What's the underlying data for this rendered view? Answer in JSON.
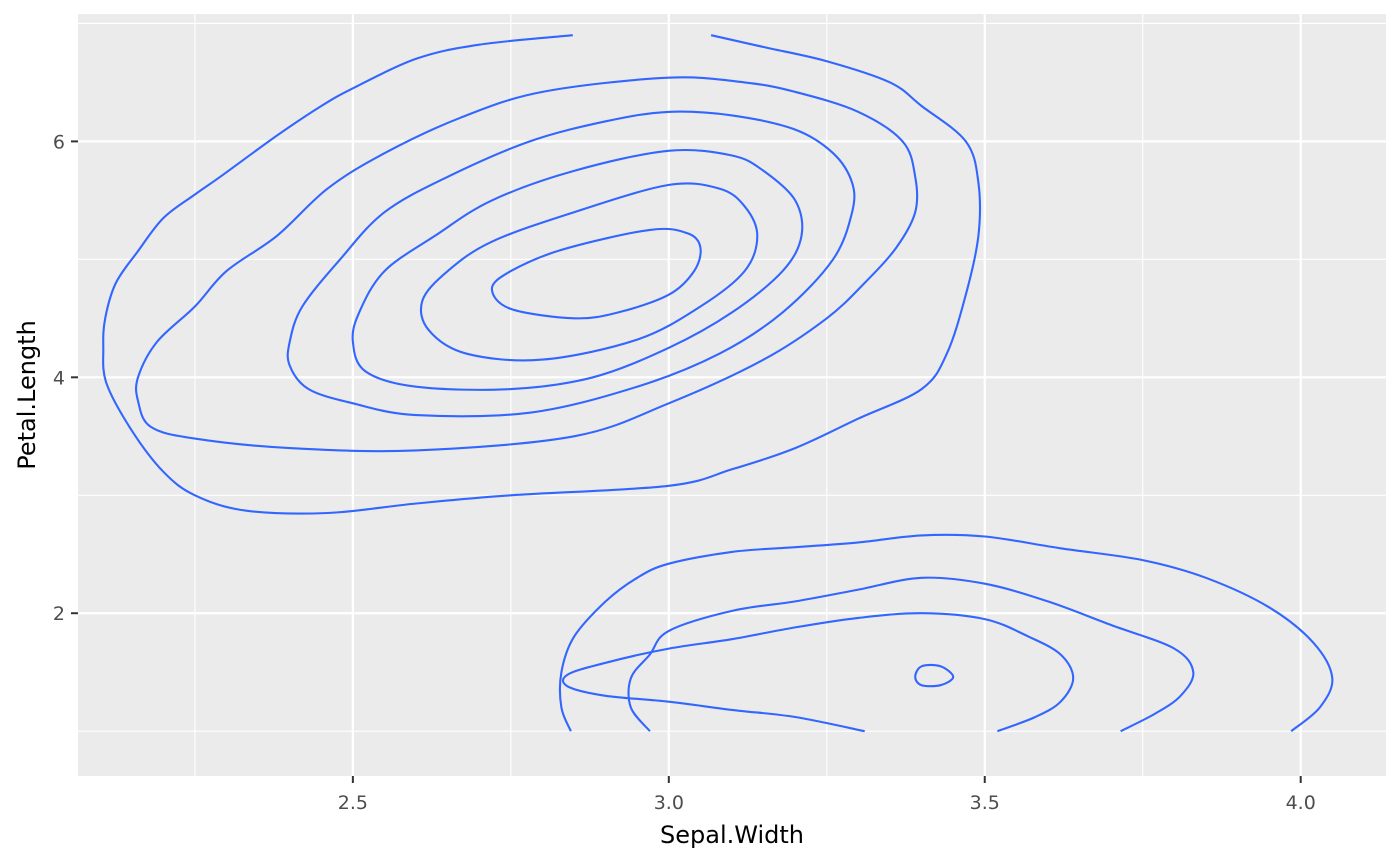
{
  "chart_data": {
    "type": "contour",
    "xlabel": "Sepal.Width",
    "ylabel": "Petal.Length",
    "xlim": [
      2.065,
      4.135
    ],
    "ylim": [
      0.62,
      7.08
    ],
    "x_ticks": [
      2.5,
      3.0,
      3.5,
      4.0
    ],
    "x_tick_labels": [
      "2.5",
      "3.0",
      "3.5",
      "4.0"
    ],
    "x_minor_ticks": [
      2.25,
      2.75,
      3.25,
      3.75
    ],
    "y_ticks": [
      2,
      4,
      6
    ],
    "y_tick_labels": [
      "2",
      "4",
      "6"
    ],
    "y_minor_ticks": [
      1,
      3,
      5,
      7
    ],
    "grid": true,
    "legend": "none",
    "colors": {
      "panel_background": "#ebebeb",
      "grid_line": "#ffffff",
      "contour_line": "#3366ff",
      "tick_mark": "#333333"
    },
    "series": [
      {
        "group": "upper",
        "closed": false,
        "points": [
          [
            2.848,
            6.9
          ],
          [
            2.7,
            6.82
          ],
          [
            2.6,
            6.7
          ],
          [
            2.5,
            6.45
          ],
          [
            2.45,
            6.3
          ],
          [
            2.38,
            6.05
          ],
          [
            2.29,
            5.7
          ],
          [
            2.25,
            5.55
          ],
          [
            2.2,
            5.35
          ],
          [
            2.16,
            5.07
          ],
          [
            2.125,
            4.8
          ],
          [
            2.108,
            4.5
          ],
          [
            2.105,
            4.25
          ],
          [
            2.11,
            3.95
          ],
          [
            2.15,
            3.55
          ],
          [
            2.2,
            3.2
          ],
          [
            2.25,
            3.0
          ],
          [
            2.33,
            2.87
          ],
          [
            2.46,
            2.85
          ],
          [
            2.6,
            2.93
          ],
          [
            2.75,
            3.0
          ],
          [
            3.0,
            3.08
          ],
          [
            3.1,
            3.22
          ],
          [
            3.2,
            3.4
          ],
          [
            3.3,
            3.65
          ],
          [
            3.4,
            3.9
          ],
          [
            3.44,
            4.2
          ],
          [
            3.47,
            4.7
          ],
          [
            3.49,
            5.2
          ],
          [
            3.49,
            5.65
          ],
          [
            3.47,
            6.0
          ],
          [
            3.4,
            6.3
          ],
          [
            3.35,
            6.5
          ],
          [
            3.25,
            6.68
          ],
          [
            3.15,
            6.8
          ],
          [
            3.067,
            6.9
          ]
        ]
      },
      {
        "group": "upper",
        "closed": true,
        "points": [
          [
            2.999,
            6.54
          ],
          [
            3.12,
            6.5
          ],
          [
            3.2,
            6.42
          ],
          [
            3.3,
            6.25
          ],
          [
            3.37,
            6.0
          ],
          [
            3.39,
            5.7
          ],
          [
            3.39,
            5.4
          ],
          [
            3.36,
            5.1
          ],
          [
            3.31,
            4.8
          ],
          [
            3.25,
            4.5
          ],
          [
            3.15,
            4.15
          ],
          [
            3.0,
            3.78
          ],
          [
            2.85,
            3.5
          ],
          [
            2.6,
            3.38
          ],
          [
            2.4,
            3.4
          ],
          [
            2.25,
            3.48
          ],
          [
            2.18,
            3.58
          ],
          [
            2.16,
            3.8
          ],
          [
            2.16,
            4.0
          ],
          [
            2.19,
            4.3
          ],
          [
            2.25,
            4.6
          ],
          [
            2.3,
            4.9
          ],
          [
            2.38,
            5.2
          ],
          [
            2.46,
            5.6
          ],
          [
            2.55,
            5.9
          ],
          [
            2.67,
            6.2
          ],
          [
            2.8,
            6.42
          ],
          [
            2.999,
            6.54
          ]
        ]
      },
      {
        "group": "upper",
        "closed": true,
        "points": [
          [
            2.999,
            6.25
          ],
          [
            3.1,
            6.22
          ],
          [
            3.2,
            6.1
          ],
          [
            3.26,
            5.9
          ],
          [
            3.29,
            5.65
          ],
          [
            3.29,
            5.4
          ],
          [
            3.26,
            5.0
          ],
          [
            3.18,
            4.55
          ],
          [
            3.08,
            4.2
          ],
          [
            2.95,
            3.92
          ],
          [
            2.78,
            3.7
          ],
          [
            2.6,
            3.68
          ],
          [
            2.5,
            3.78
          ],
          [
            2.43,
            3.9
          ],
          [
            2.4,
            4.1
          ],
          [
            2.4,
            4.3
          ],
          [
            2.42,
            4.6
          ],
          [
            2.48,
            5.0
          ],
          [
            2.55,
            5.4
          ],
          [
            2.65,
            5.7
          ],
          [
            2.78,
            6.0
          ],
          [
            2.9,
            6.17
          ],
          [
            2.999,
            6.25
          ]
        ]
      },
      {
        "group": "upper",
        "closed": true,
        "points": [
          [
            2.999,
            5.92
          ],
          [
            3.1,
            5.88
          ],
          [
            3.15,
            5.75
          ],
          [
            3.2,
            5.5
          ],
          [
            3.21,
            5.2
          ],
          [
            3.18,
            4.9
          ],
          [
            3.1,
            4.55
          ],
          [
            3.0,
            4.25
          ],
          [
            2.88,
            4.0
          ],
          [
            2.75,
            3.9
          ],
          [
            2.6,
            3.92
          ],
          [
            2.52,
            4.05
          ],
          [
            2.5,
            4.3
          ],
          [
            2.51,
            4.55
          ],
          [
            2.55,
            4.9
          ],
          [
            2.63,
            5.2
          ],
          [
            2.72,
            5.5
          ],
          [
            2.85,
            5.75
          ],
          [
            2.999,
            5.92
          ]
        ]
      },
      {
        "group": "upper",
        "closed": true,
        "points": [
          [
            2.999,
            5.63
          ],
          [
            3.08,
            5.6
          ],
          [
            3.12,
            5.45
          ],
          [
            3.14,
            5.2
          ],
          [
            3.12,
            4.9
          ],
          [
            3.05,
            4.6
          ],
          [
            2.95,
            4.32
          ],
          [
            2.8,
            4.15
          ],
          [
            2.68,
            4.2
          ],
          [
            2.62,
            4.4
          ],
          [
            2.61,
            4.65
          ],
          [
            2.65,
            4.9
          ],
          [
            2.72,
            5.15
          ],
          [
            2.85,
            5.4
          ],
          [
            2.999,
            5.63
          ]
        ]
      },
      {
        "group": "upper",
        "closed": true,
        "points": [
          [
            2.97,
            5.25
          ],
          [
            3.03,
            5.22
          ],
          [
            3.05,
            5.1
          ],
          [
            3.04,
            4.9
          ],
          [
            3.0,
            4.7
          ],
          [
            2.92,
            4.55
          ],
          [
            2.85,
            4.5
          ],
          [
            2.75,
            4.58
          ],
          [
            2.72,
            4.75
          ],
          [
            2.75,
            4.9
          ],
          [
            2.83,
            5.08
          ],
          [
            2.97,
            5.25
          ]
        ]
      },
      {
        "group": "lower",
        "closed": false,
        "points": [
          [
            2.845,
            1.0
          ],
          [
            2.83,
            1.2
          ],
          [
            2.83,
            1.5
          ],
          [
            2.85,
            1.8
          ],
          [
            2.9,
            2.1
          ],
          [
            2.95,
            2.3
          ],
          [
            3.0,
            2.42
          ],
          [
            3.1,
            2.52
          ],
          [
            3.2,
            2.56
          ],
          [
            3.3,
            2.6
          ],
          [
            3.4,
            2.66
          ],
          [
            3.5,
            2.65
          ],
          [
            3.62,
            2.55
          ],
          [
            3.75,
            2.45
          ],
          [
            3.85,
            2.3
          ],
          [
            3.95,
            2.05
          ],
          [
            4.02,
            1.75
          ],
          [
            4.05,
            1.45
          ],
          [
            4.03,
            1.2
          ],
          [
            3.985,
            1.0
          ]
        ]
      },
      {
        "group": "lower",
        "closed": false,
        "points": [
          [
            2.97,
            1.0
          ],
          [
            2.94,
            1.2
          ],
          [
            2.94,
            1.45
          ],
          [
            2.97,
            1.65
          ],
          [
            3.0,
            1.85
          ],
          [
            3.1,
            2.02
          ],
          [
            3.2,
            2.1
          ],
          [
            3.3,
            2.2
          ],
          [
            3.4,
            2.3
          ],
          [
            3.5,
            2.25
          ],
          [
            3.6,
            2.1
          ],
          [
            3.7,
            1.9
          ],
          [
            3.8,
            1.7
          ],
          [
            3.83,
            1.5
          ],
          [
            3.81,
            1.3
          ],
          [
            3.77,
            1.15
          ],
          [
            3.715,
            1.0
          ]
        ]
      },
      {
        "group": "lower",
        "closed": false,
        "points": [
          [
            3.31,
            1.0
          ],
          [
            3.2,
            1.12
          ],
          [
            3.1,
            1.18
          ],
          [
            3.0,
            1.25
          ],
          [
            2.9,
            1.3
          ],
          [
            2.84,
            1.38
          ],
          [
            2.84,
            1.48
          ],
          [
            2.9,
            1.58
          ],
          [
            3.0,
            1.7
          ],
          [
            3.1,
            1.78
          ],
          [
            3.2,
            1.88
          ],
          [
            3.3,
            1.96
          ],
          [
            3.4,
            2.0
          ],
          [
            3.5,
            1.95
          ],
          [
            3.57,
            1.8
          ],
          [
            3.62,
            1.65
          ],
          [
            3.64,
            1.45
          ],
          [
            3.62,
            1.25
          ],
          [
            3.58,
            1.12
          ],
          [
            3.52,
            1.0
          ]
        ]
      },
      {
        "group": "lower",
        "closed": true,
        "points": [
          [
            3.39,
            1.46
          ],
          [
            3.4,
            1.55
          ],
          [
            3.43,
            1.55
          ],
          [
            3.45,
            1.46
          ],
          [
            3.43,
            1.39
          ],
          [
            3.4,
            1.39
          ],
          [
            3.39,
            1.46
          ]
        ]
      }
    ]
  }
}
